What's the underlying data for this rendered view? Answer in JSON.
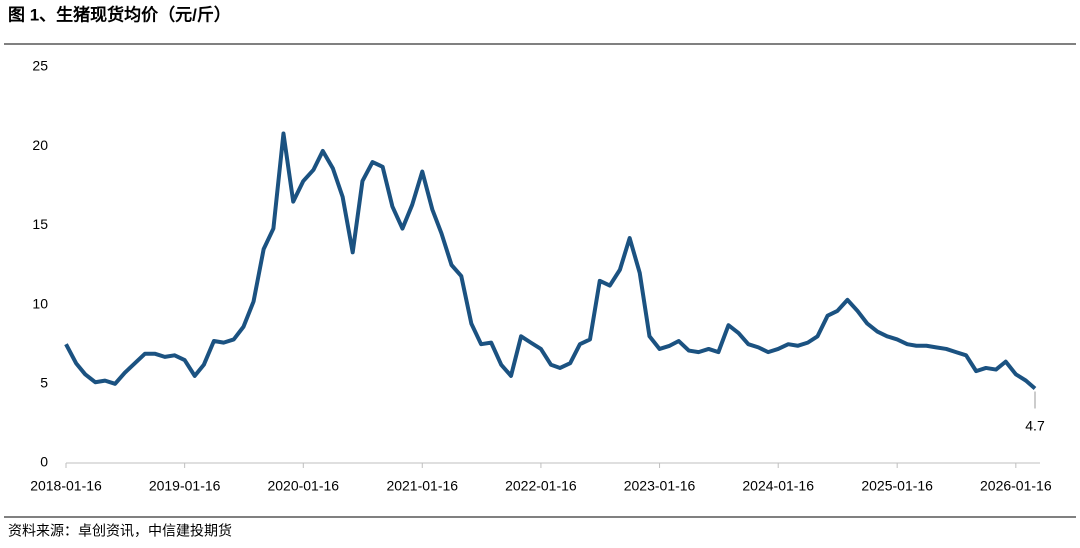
{
  "chart_data": {
    "type": "line",
    "title": "图 1、生猪现货均价（元/斤）",
    "source": "资料来源：卓创资讯，中信建投期货",
    "x": [
      "2018-01-16",
      "2018-02-16",
      "2018-03-16",
      "2018-04-16",
      "2018-05-16",
      "2018-06-16",
      "2018-07-16",
      "2018-08-16",
      "2018-09-16",
      "2018-10-16",
      "2018-11-16",
      "2018-12-16",
      "2019-01-16",
      "2019-02-16",
      "2019-03-16",
      "2019-04-16",
      "2019-05-16",
      "2019-06-16",
      "2019-07-16",
      "2019-08-16",
      "2019-09-16",
      "2019-10-16",
      "2019-11-16",
      "2019-12-16",
      "2020-01-16",
      "2020-02-16",
      "2020-03-16",
      "2020-04-16",
      "2020-05-16",
      "2020-06-16",
      "2020-07-16",
      "2020-08-16",
      "2020-09-16",
      "2020-10-16",
      "2020-11-16",
      "2020-12-16",
      "2021-01-16",
      "2021-02-16",
      "2021-03-16",
      "2021-04-16",
      "2021-05-16",
      "2021-06-16",
      "2021-07-16",
      "2021-08-16",
      "2021-09-16",
      "2021-10-16",
      "2021-11-16",
      "2021-12-16",
      "2022-01-16",
      "2022-02-16",
      "2022-03-16",
      "2022-04-16",
      "2022-05-16",
      "2022-06-16",
      "2022-07-16",
      "2022-08-16",
      "2022-09-16",
      "2022-10-16",
      "2022-11-16",
      "2022-12-16",
      "2023-01-16",
      "2023-02-16",
      "2023-03-16",
      "2023-04-16",
      "2023-05-16",
      "2023-06-16",
      "2023-07-16",
      "2023-08-16",
      "2023-09-16",
      "2023-10-16",
      "2023-11-16",
      "2023-12-16",
      "2024-01-16",
      "2024-02-16",
      "2024-03-16",
      "2024-04-16",
      "2024-05-16",
      "2024-06-16",
      "2024-07-16",
      "2024-08-16",
      "2024-09-16",
      "2024-10-16",
      "2024-11-16",
      "2024-12-16",
      "2025-01-16",
      "2025-02-16",
      "2025-03-16",
      "2025-04-16",
      "2025-05-16",
      "2025-06-16",
      "2025-07-16",
      "2025-08-16",
      "2025-09-16",
      "2025-10-16",
      "2025-11-16",
      "2025-12-16",
      "2026-01-16",
      "2026-02-16",
      "2026-03-16"
    ],
    "series": [
      {
        "name": "生猪现货均价",
        "color": "#1b5281",
        "values": [
          7.5,
          6.3,
          5.6,
          5.1,
          5.2,
          5.0,
          5.7,
          6.3,
          6.9,
          6.9,
          6.7,
          6.8,
          6.5,
          5.5,
          6.2,
          7.7,
          7.6,
          7.8,
          8.6,
          10.2,
          13.5,
          14.8,
          20.8,
          16.5,
          17.8,
          18.5,
          19.7,
          18.6,
          16.8,
          13.3,
          17.8,
          19.0,
          18.7,
          16.2,
          14.8,
          16.3,
          18.4,
          16.0,
          14.5,
          12.5,
          11.8,
          8.8,
          7.5,
          7.6,
          6.2,
          5.5,
          8.0,
          7.6,
          7.2,
          6.2,
          6.0,
          6.3,
          7.5,
          7.8,
          11.5,
          11.2,
          12.2,
          14.2,
          12.0,
          8.0,
          7.2,
          7.4,
          7.7,
          7.1,
          7.0,
          7.2,
          7.0,
          8.7,
          8.2,
          7.5,
          7.3,
          7.0,
          7.2,
          7.5,
          7.4,
          7.6,
          8.0,
          9.3,
          9.6,
          10.3,
          9.6,
          8.8,
          8.3,
          8.0,
          7.8,
          7.5,
          7.4,
          7.4,
          7.3,
          7.2,
          7.0,
          6.8,
          5.8,
          6.0,
          5.9,
          6.4,
          5.6,
          5.2,
          4.7
        ]
      }
    ],
    "annotations": [
      {
        "x": "2026-03-16",
        "value": 4.7
      }
    ],
    "xlim": [
      "2018-01-16",
      "2026-03-16"
    ],
    "xticks": [
      "2018-01-16",
      "2019-01-16",
      "2020-01-16",
      "2021-01-16",
      "2022-01-16",
      "2023-01-16",
      "2024-01-16",
      "2025-01-16",
      "2026-01-16"
    ],
    "ylim": [
      0,
      25
    ],
    "yticks": [
      0,
      5,
      10,
      15,
      20,
      25
    ],
    "grid": false
  }
}
